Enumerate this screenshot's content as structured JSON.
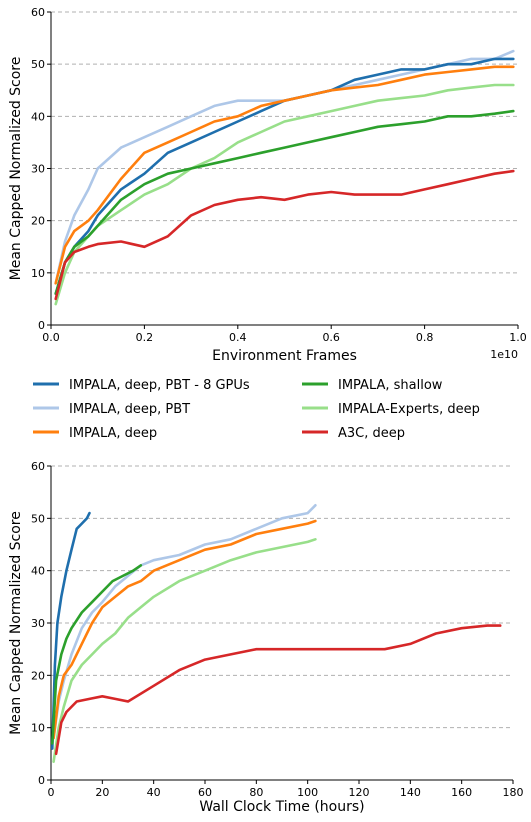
{
  "legend": [
    {
      "name": "IMPALA, deep, PBT - 8 GPUs",
      "color": "#1f6fad"
    },
    {
      "name": "IMPALA, shallow",
      "color": "#2ca02c"
    },
    {
      "name": "IMPALA, deep, PBT",
      "color": "#aec7e8"
    },
    {
      "name": "IMPALA-Experts, deep",
      "color": "#98df8a"
    },
    {
      "name": "IMPALA, deep",
      "color": "#ff7f0e"
    },
    {
      "name": "A3C, deep",
      "color": "#d62728"
    }
  ],
  "chart_data": [
    {
      "type": "line",
      "xlabel": "Environment Frames",
      "ylabel": "Mean Capped Normalized Score",
      "x_offset_label": "1e10",
      "xlim": [
        0,
        1.0
      ],
      "ylim": [
        0,
        60
      ],
      "xticks": [
        "0.0",
        "0.2",
        "0.4",
        "0.6",
        "0.8",
        "1.0"
      ],
      "yticks": [
        "0",
        "10",
        "20",
        "30",
        "40",
        "50",
        "60"
      ],
      "grid": "horizontal dashed",
      "series": [
        {
          "name": "IMPALA, deep, PBT",
          "color": "#aec7e8",
          "x": [
            0.01,
            0.03,
            0.05,
            0.08,
            0.1,
            0.15,
            0.2,
            0.25,
            0.3,
            0.35,
            0.4,
            0.45,
            0.5,
            0.55,
            0.6,
            0.65,
            0.7,
            0.75,
            0.8,
            0.85,
            0.9,
            0.95,
            0.99
          ],
          "y": [
            8,
            16,
            21,
            26,
            30,
            34,
            36,
            38,
            40,
            42,
            43,
            43,
            43,
            44,
            45,
            46,
            47,
            48,
            49,
            50,
            51,
            51,
            52.5
          ]
        },
        {
          "name": "IMPALA, deep, PBT - 8 GPUs",
          "color": "#1f6fad",
          "x": [
            0.01,
            0.03,
            0.05,
            0.08,
            0.1,
            0.15,
            0.2,
            0.25,
            0.3,
            0.35,
            0.4,
            0.45,
            0.5,
            0.55,
            0.6,
            0.65,
            0.7,
            0.75,
            0.8,
            0.85,
            0.9,
            0.95,
            0.99
          ],
          "y": [
            6,
            12,
            15,
            18,
            21,
            26,
            29,
            33,
            35,
            37,
            39,
            41,
            43,
            44,
            45,
            47,
            48,
            49,
            49,
            50,
            50,
            51,
            51
          ]
        },
        {
          "name": "IMPALA, deep",
          "color": "#ff7f0e",
          "x": [
            0.01,
            0.03,
            0.05,
            0.08,
            0.1,
            0.15,
            0.2,
            0.25,
            0.3,
            0.35,
            0.4,
            0.45,
            0.5,
            0.55,
            0.6,
            0.65,
            0.7,
            0.75,
            0.8,
            0.85,
            0.9,
            0.95,
            0.99
          ],
          "y": [
            8,
            15,
            18,
            20,
            22,
            28,
            33,
            35,
            37,
            39,
            40,
            42,
            43,
            44,
            45,
            45.5,
            46,
            47,
            48,
            48.5,
            49,
            49.5,
            49.5
          ]
        },
        {
          "name": "IMPALA-Experts, deep",
          "color": "#98df8a",
          "x": [
            0.01,
            0.03,
            0.05,
            0.08,
            0.1,
            0.15,
            0.2,
            0.25,
            0.3,
            0.35,
            0.4,
            0.45,
            0.5,
            0.55,
            0.6,
            0.65,
            0.7,
            0.75,
            0.8,
            0.85,
            0.9,
            0.95,
            0.99
          ],
          "y": [
            4,
            10,
            14,
            17,
            19,
            22,
            25,
            27,
            30,
            32,
            35,
            37,
            39,
            40,
            41,
            42,
            43,
            43.5,
            44,
            45,
            45.5,
            46,
            46
          ]
        },
        {
          "name": "IMPALA, shallow",
          "color": "#2ca02c",
          "x": [
            0.01,
            0.03,
            0.05,
            0.08,
            0.1,
            0.15,
            0.2,
            0.25,
            0.3,
            0.35,
            0.4,
            0.45,
            0.5,
            0.55,
            0.6,
            0.65,
            0.7,
            0.75,
            0.8,
            0.85,
            0.9,
            0.95,
            0.99
          ],
          "y": [
            6,
            12,
            15,
            17,
            19,
            24,
            27,
            29,
            30,
            31,
            32,
            33,
            34,
            35,
            36,
            37,
            38,
            38.5,
            39,
            40,
            40,
            40.5,
            41
          ]
        },
        {
          "name": "A3C, deep",
          "color": "#d62728",
          "x": [
            0.01,
            0.03,
            0.05,
            0.08,
            0.1,
            0.15,
            0.2,
            0.25,
            0.3,
            0.35,
            0.4,
            0.45,
            0.5,
            0.55,
            0.6,
            0.65,
            0.7,
            0.75,
            0.8,
            0.85,
            0.9,
            0.95,
            0.99
          ],
          "y": [
            5,
            12,
            14,
            15,
            15.5,
            16,
            15,
            17,
            21,
            23,
            24,
            24.5,
            24,
            25,
            25.5,
            25,
            25,
            25,
            26,
            27,
            28,
            29,
            29.5
          ]
        }
      ]
    },
    {
      "type": "line",
      "xlabel": "Wall Clock Time (hours)",
      "ylabel": "Mean Capped Normalized Score",
      "xlim": [
        0,
        180
      ],
      "ylim": [
        0,
        60
      ],
      "xticks": [
        "0",
        "20",
        "40",
        "60",
        "80",
        "100",
        "120",
        "140",
        "160",
        "180"
      ],
      "yticks": [
        "0",
        "10",
        "20",
        "30",
        "40",
        "50",
        "60"
      ],
      "grid": "horizontal dashed",
      "series": [
        {
          "name": "IMPALA, deep, PBT",
          "color": "#aec7e8",
          "x": [
            1,
            3,
            5,
            8,
            12,
            16,
            20,
            25,
            30,
            35,
            40,
            50,
            60,
            70,
            80,
            90,
            100,
            103
          ],
          "y": [
            8,
            15,
            19,
            24,
            29,
            32,
            34,
            37,
            39,
            41,
            42,
            43,
            45,
            46,
            48,
            50,
            51,
            52.5
          ]
        },
        {
          "name": "IMPALA, deep, PBT - 8 GPUs",
          "color": "#1f6fad",
          "x": [
            0.5,
            1.5,
            2.5,
            4,
            6,
            8,
            10,
            12,
            14,
            15
          ],
          "y": [
            6,
            22,
            30,
            35,
            40,
            44,
            48,
            49,
            50,
            51
          ]
        },
        {
          "name": "IMPALA, deep",
          "color": "#ff7f0e",
          "x": [
            1,
            3,
            5,
            8,
            12,
            16,
            20,
            25,
            30,
            35,
            40,
            50,
            60,
            70,
            80,
            90,
            100,
            103
          ],
          "y": [
            8,
            16,
            20,
            22,
            26,
            30,
            33,
            35,
            37,
            38,
            40,
            42,
            44,
            45,
            47,
            48,
            49,
            49.5
          ]
        },
        {
          "name": "IMPALA-Experts, deep",
          "color": "#98df8a",
          "x": [
            1,
            3,
            5,
            8,
            12,
            16,
            20,
            25,
            30,
            35,
            40,
            50,
            60,
            70,
            80,
            90,
            100,
            103
          ],
          "y": [
            3.5,
            10,
            14,
            19,
            22,
            24,
            26,
            28,
            31,
            33,
            35,
            38,
            40,
            42,
            43.5,
            44.5,
            45.5,
            46
          ]
        },
        {
          "name": "IMPALA, shallow",
          "color": "#2ca02c",
          "x": [
            0.5,
            2,
            4,
            6,
            8,
            12,
            16,
            20,
            24,
            28,
            32,
            35
          ],
          "y": [
            7,
            19,
            24,
            27,
            29,
            32,
            34,
            36,
            38,
            39,
            40,
            41
          ]
        },
        {
          "name": "A3C, deep",
          "color": "#d62728",
          "x": [
            2,
            4,
            6,
            10,
            15,
            20,
            25,
            30,
            40,
            50,
            60,
            70,
            80,
            90,
            100,
            110,
            120,
            130,
            140,
            150,
            160,
            170,
            175
          ],
          "y": [
            5,
            11,
            13,
            15,
            15.5,
            16,
            15.5,
            15,
            18,
            21,
            23,
            24,
            25,
            25,
            25,
            25,
            25,
            25,
            26,
            28,
            29,
            29.5,
            29.5
          ]
        }
      ]
    }
  ]
}
